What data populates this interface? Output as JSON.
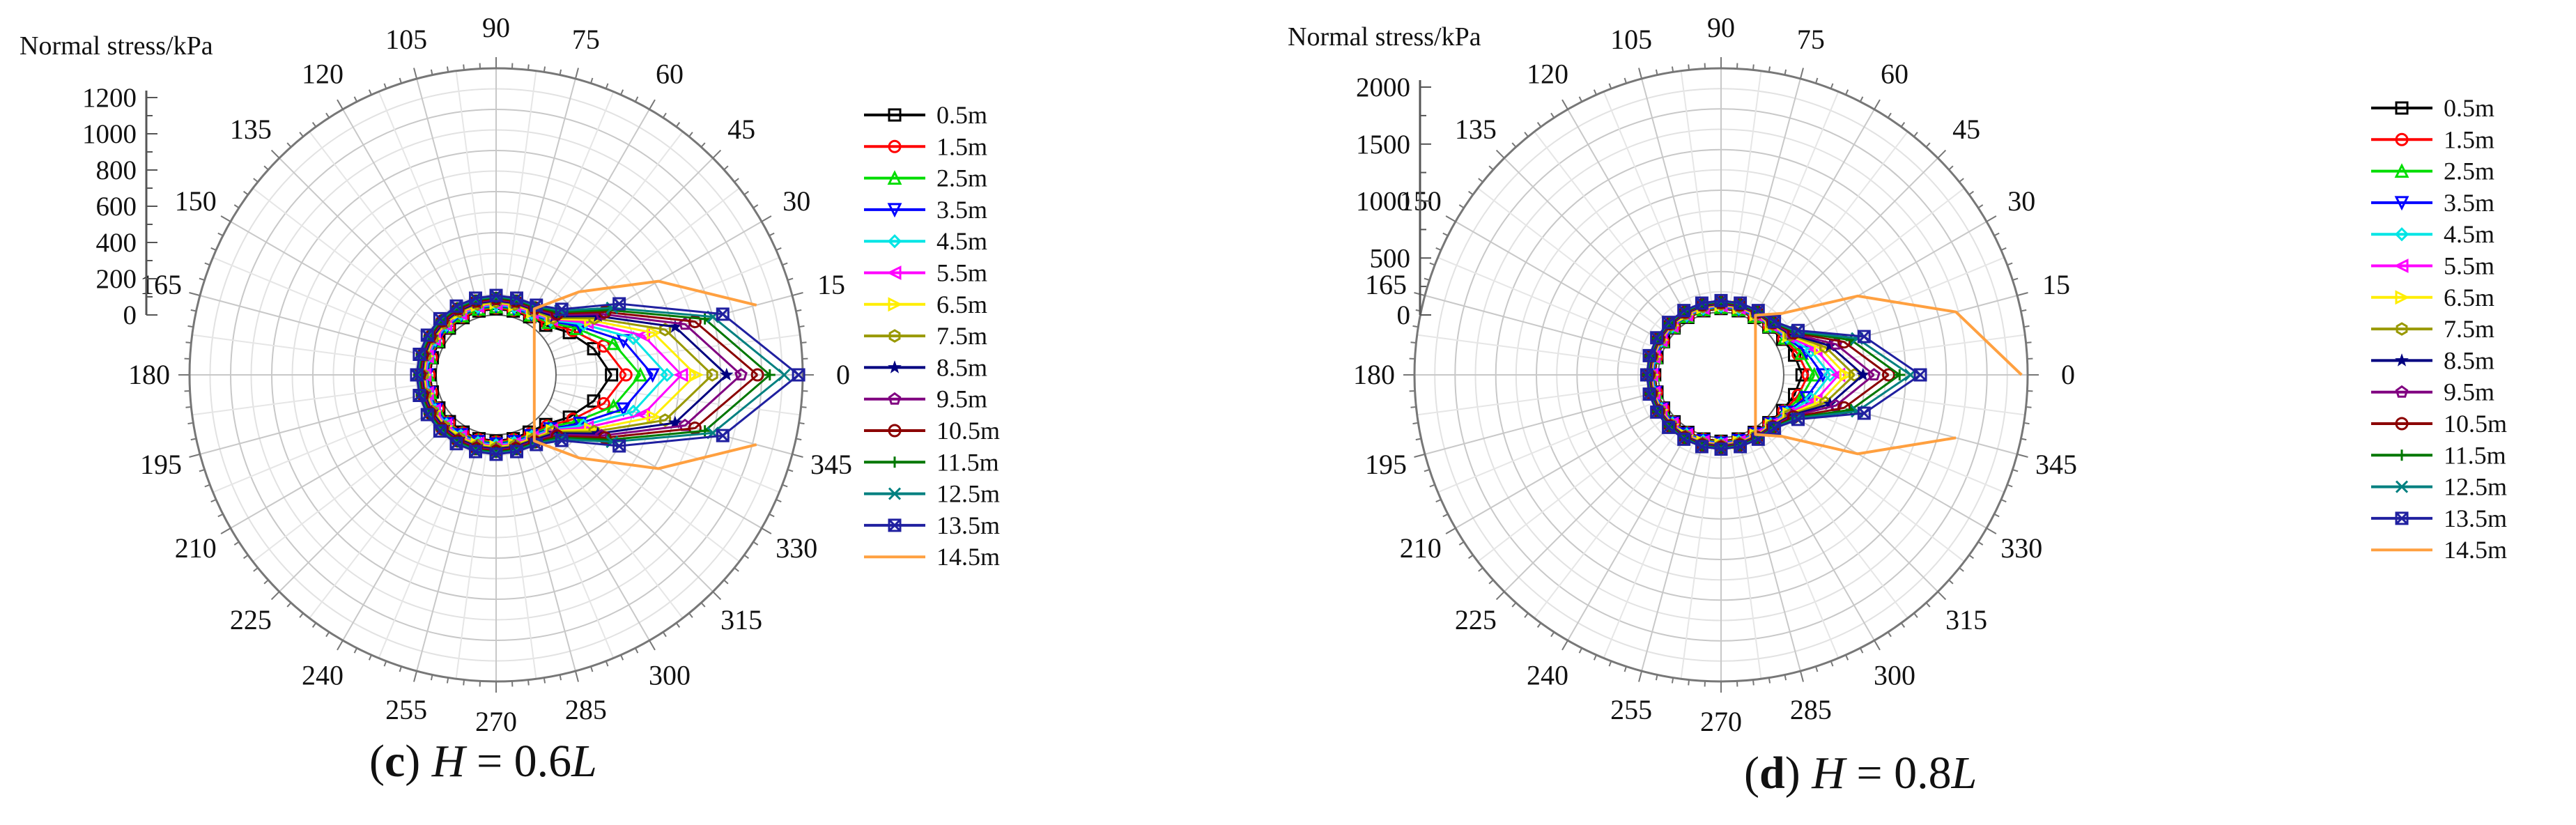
{
  "chart_data": [
    {
      "type": "polar-line",
      "title": "Normal stress/kPa",
      "caption": {
        "letter": "c",
        "open": "(",
        "close": ")",
        "variable": "H",
        "eq": " = 0.6",
        "unit": "L"
      },
      "radial_ticks": [
        1200,
        1000,
        800,
        600,
        400,
        200,
        0
      ],
      "angle_ticks": [
        0,
        15,
        30,
        45,
        60,
        75,
        90,
        105,
        120,
        135,
        150,
        165,
        180,
        195,
        210,
        225,
        240,
        255,
        270,
        285,
        300,
        315,
        330,
        345
      ],
      "series": [
        {
          "name": "0.5m",
          "color": "#000000",
          "marker": "square",
          "values": [
            270,
            200,
            120,
            50,
            35,
            30,
            30,
            30,
            30,
            30,
            30,
            30,
            30,
            30,
            30,
            30,
            30,
            30,
            30,
            30,
            30,
            50,
            120,
            200
          ]
        },
        {
          "name": "1.5m",
          "color": "#ff0000",
          "marker": "circle",
          "values": [
            340,
            250,
            140,
            60,
            40,
            35,
            35,
            35,
            35,
            35,
            35,
            35,
            35,
            35,
            35,
            35,
            35,
            35,
            35,
            35,
            40,
            60,
            140,
            250
          ]
        },
        {
          "name": "2.5m",
          "color": "#00dd00",
          "marker": "triangle",
          "values": [
            410,
            300,
            160,
            70,
            45,
            40,
            40,
            40,
            40,
            40,
            40,
            40,
            40,
            40,
            40,
            40,
            40,
            40,
            40,
            40,
            45,
            70,
            160,
            300
          ]
        },
        {
          "name": "3.5m",
          "color": "#0000ff",
          "marker": "tri-down",
          "values": [
            470,
            350,
            180,
            80,
            50,
            45,
            45,
            45,
            45,
            45,
            45,
            45,
            45,
            45,
            45,
            45,
            45,
            45,
            45,
            45,
            50,
            80,
            180,
            350
          ]
        },
        {
          "name": "4.5m",
          "color": "#00e5e5",
          "marker": "diamond",
          "values": [
            540,
            400,
            200,
            85,
            55,
            50,
            50,
            50,
            50,
            50,
            50,
            50,
            50,
            50,
            50,
            50,
            50,
            50,
            50,
            50,
            55,
            85,
            200,
            400
          ]
        },
        {
          "name": "5.5m",
          "color": "#ff00ff",
          "marker": "tri-left",
          "values": [
            610,
            450,
            220,
            90,
            60,
            55,
            55,
            55,
            55,
            55,
            55,
            55,
            55,
            55,
            55,
            55,
            55,
            55,
            55,
            55,
            60,
            90,
            220,
            450
          ]
        },
        {
          "name": "6.5m",
          "color": "#ffee00",
          "marker": "tri-right",
          "values": [
            680,
            500,
            240,
            95,
            65,
            60,
            60,
            60,
            60,
            60,
            60,
            60,
            60,
            60,
            60,
            60,
            60,
            60,
            60,
            60,
            65,
            95,
            240,
            500
          ]
        },
        {
          "name": "7.5m",
          "color": "#999900",
          "marker": "hexagon",
          "values": [
            760,
            560,
            260,
            100,
            70,
            65,
            65,
            65,
            65,
            65,
            65,
            65,
            65,
            65,
            65,
            65,
            65,
            65,
            65,
            65,
            70,
            100,
            260,
            560
          ]
        },
        {
          "name": "8.5m",
          "color": "#000080",
          "marker": "star",
          "values": [
            830,
            610,
            280,
            110,
            75,
            70,
            70,
            70,
            70,
            70,
            70,
            70,
            70,
            70,
            70,
            70,
            70,
            70,
            70,
            70,
            75,
            110,
            280,
            610
          ]
        },
        {
          "name": "9.5m",
          "color": "#800080",
          "marker": "pentagon",
          "values": [
            900,
            660,
            300,
            120,
            80,
            75,
            75,
            75,
            75,
            75,
            75,
            75,
            75,
            75,
            75,
            75,
            75,
            75,
            75,
            75,
            80,
            120,
            300,
            660
          ]
        },
        {
          "name": "10.5m",
          "color": "#8b0000",
          "marker": "circle",
          "values": [
            980,
            710,
            320,
            130,
            85,
            80,
            80,
            80,
            80,
            80,
            80,
            80,
            80,
            80,
            80,
            80,
            80,
            80,
            80,
            80,
            85,
            130,
            320,
            710
          ]
        },
        {
          "name": "11.5m",
          "color": "#007700",
          "marker": "plus",
          "values": [
            1040,
            760,
            340,
            140,
            90,
            85,
            85,
            85,
            85,
            85,
            85,
            85,
            85,
            85,
            85,
            85,
            85,
            85,
            85,
            85,
            90,
            140,
            340,
            760
          ]
        },
        {
          "name": "12.5m",
          "color": "#008080",
          "marker": "x",
          "values": [
            1110,
            800,
            360,
            150,
            95,
            90,
            90,
            90,
            90,
            90,
            90,
            90,
            90,
            90,
            90,
            90,
            90,
            90,
            90,
            90,
            95,
            150,
            360,
            800
          ]
        },
        {
          "name": "13.5m",
          "color": "#2020a0",
          "marker": "x-box",
          "values": [
            1180,
            850,
            400,
            160,
            100,
            95,
            95,
            95,
            95,
            95,
            95,
            95,
            95,
            95,
            95,
            95,
            95,
            95,
            95,
            95,
            100,
            160,
            400,
            850
          ]
        },
        {
          "name": "14.5m",
          "color": "#ffa040",
          "marker": "none",
          "values": [
            null,
            1020,
            620,
            280,
            80,
            null,
            null,
            null,
            null,
            null,
            null,
            null,
            null,
            null,
            null,
            null,
            null,
            null,
            null,
            null,
            80,
            280,
            620,
            1020
          ]
        }
      ]
    },
    {
      "type": "polar-line",
      "title": "Normal stress/kPa",
      "caption": {
        "letter": "d",
        "open": "(",
        "close": ")",
        "variable": "H",
        "eq": " = 0.8",
        "unit": "L"
      },
      "radial_ticks": [
        2000,
        1500,
        1000,
        500,
        0
      ],
      "angle_ticks": [
        0,
        15,
        30,
        45,
        60,
        75,
        90,
        105,
        120,
        135,
        150,
        165,
        180,
        195,
        210,
        225,
        240,
        255,
        270,
        285,
        300,
        315,
        330,
        345
      ],
      "series": [
        {
          "name": "0.5m",
          "color": "#000000",
          "marker": "square",
          "values": [
            150,
            110,
            70,
            40,
            30,
            30,
            30,
            30,
            30,
            30,
            30,
            30,
            30,
            30,
            30,
            30,
            30,
            30,
            30,
            30,
            30,
            40,
            70,
            110
          ]
        },
        {
          "name": "1.5m",
          "color": "#ff0000",
          "marker": "circle",
          "values": [
            200,
            140,
            80,
            45,
            35,
            35,
            35,
            35,
            35,
            35,
            35,
            35,
            35,
            35,
            35,
            35,
            35,
            35,
            35,
            35,
            35,
            45,
            80,
            140
          ]
        },
        {
          "name": "2.5m",
          "color": "#00dd00",
          "marker": "triangle",
          "values": [
            250,
            170,
            90,
            50,
            40,
            40,
            40,
            40,
            40,
            40,
            40,
            40,
            40,
            40,
            40,
            40,
            40,
            40,
            40,
            40,
            40,
            50,
            90,
            170
          ]
        },
        {
          "name": "3.5m",
          "color": "#0000ff",
          "marker": "tri-down",
          "values": [
            320,
            210,
            100,
            55,
            45,
            45,
            45,
            45,
            45,
            45,
            45,
            45,
            45,
            45,
            45,
            45,
            45,
            45,
            45,
            45,
            45,
            55,
            100,
            210
          ]
        },
        {
          "name": "4.5m",
          "color": "#00e5e5",
          "marker": "diamond",
          "values": [
            380,
            250,
            110,
            60,
            50,
            50,
            50,
            50,
            50,
            50,
            50,
            50,
            50,
            50,
            50,
            50,
            50,
            50,
            50,
            50,
            50,
            60,
            110,
            250
          ]
        },
        {
          "name": "5.5m",
          "color": "#ff00ff",
          "marker": "tri-left",
          "values": [
            450,
            290,
            120,
            65,
            55,
            55,
            55,
            55,
            55,
            55,
            55,
            55,
            55,
            55,
            55,
            55,
            55,
            55,
            55,
            55,
            55,
            65,
            120,
            290
          ]
        },
        {
          "name": "6.5m",
          "color": "#ffee00",
          "marker": "tri-right",
          "values": [
            510,
            330,
            130,
            70,
            60,
            60,
            60,
            60,
            60,
            60,
            60,
            60,
            60,
            60,
            60,
            60,
            60,
            60,
            60,
            60,
            60,
            70,
            130,
            330
          ]
        },
        {
          "name": "7.5m",
          "color": "#999900",
          "marker": "hexagon",
          "values": [
            580,
            370,
            140,
            75,
            65,
            65,
            65,
            65,
            65,
            65,
            65,
            65,
            65,
            65,
            65,
            65,
            65,
            65,
            65,
            65,
            65,
            75,
            140,
            370
          ]
        },
        {
          "name": "8.5m",
          "color": "#000080",
          "marker": "star",
          "values": [
            650,
            410,
            150,
            80,
            70,
            70,
            70,
            70,
            70,
            70,
            70,
            70,
            70,
            70,
            70,
            70,
            70,
            70,
            70,
            70,
            70,
            80,
            150,
            410
          ]
        },
        {
          "name": "9.5m",
          "color": "#800080",
          "marker": "pentagon",
          "values": [
            740,
            460,
            160,
            85,
            75,
            75,
            75,
            75,
            75,
            75,
            75,
            75,
            75,
            75,
            75,
            75,
            75,
            75,
            75,
            75,
            75,
            85,
            160,
            460
          ]
        },
        {
          "name": "10.5m",
          "color": "#8b0000",
          "marker": "circle",
          "values": [
            860,
            530,
            175,
            90,
            80,
            80,
            80,
            80,
            80,
            80,
            80,
            80,
            80,
            80,
            80,
            80,
            80,
            80,
            80,
            80,
            80,
            90,
            175,
            530
          ]
        },
        {
          "name": "11.5m",
          "color": "#007700",
          "marker": "plus",
          "values": [
            950,
            590,
            190,
            95,
            85,
            85,
            85,
            85,
            85,
            85,
            85,
            85,
            85,
            85,
            85,
            85,
            85,
            85,
            85,
            85,
            85,
            95,
            190,
            590
          ]
        },
        {
          "name": "12.5m",
          "color": "#008080",
          "marker": "x",
          "values": [
            1040,
            640,
            200,
            100,
            90,
            90,
            90,
            90,
            90,
            90,
            90,
            90,
            90,
            90,
            90,
            90,
            90,
            90,
            90,
            90,
            90,
            100,
            200,
            640
          ]
        },
        {
          "name": "13.5m",
          "color": "#2020a0",
          "marker": "x-box",
          "values": [
            1120,
            700,
            215,
            105,
            95,
            95,
            95,
            95,
            95,
            95,
            95,
            95,
            95,
            95,
            95,
            95,
            95,
            95,
            95,
            95,
            95,
            105,
            215,
            700
          ]
        },
        {
          "name": "14.5m",
          "color": "#ffa040",
          "marker": "none",
          "values": [
            1950,
            1480,
            780,
            200,
            50,
            null,
            null,
            null,
            null,
            null,
            null,
            null,
            null,
            null,
            null,
            null,
            null,
            null,
            null,
            null,
            50,
            200,
            780,
            1480
          ]
        }
      ]
    }
  ]
}
